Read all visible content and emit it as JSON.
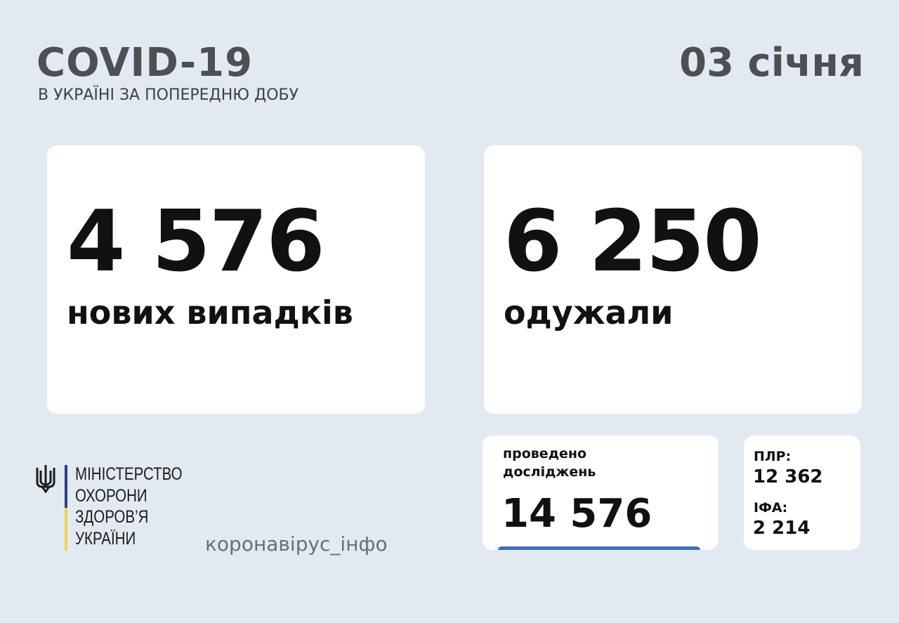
{
  "header": {
    "title": "COVID-19",
    "subtitle": "В УКРАЇНІ ЗА ПОПЕРЕДНЮ ДОБУ",
    "date": "03 січня"
  },
  "new_cases": {
    "value": "4 576",
    "label": "нових випадків"
  },
  "recovered": {
    "value": "6 250",
    "label": "одужали"
  },
  "tests": {
    "label_line1": "проведено",
    "label_line2": "досліджень",
    "value": "14 576"
  },
  "test_breakdown": {
    "pcr_label": "ПЛР:",
    "pcr_value": "12 362",
    "ifa_label": "ІФА:",
    "ifa_value": "2 214"
  },
  "ministry": {
    "lines": [
      "МІНІСТЕРСТВО",
      "ОХОРОНИ",
      "ЗДОРОВ’Я",
      "УКРАЇНИ"
    ],
    "emblem_icon": "trident-icon"
  },
  "hashtag": "коронавірус_інфо",
  "colors": {
    "background": "#e3e9f0",
    "accent_blue": "#3f6fb5",
    "flag_blue": "#2a3f8f",
    "flag_yellow": "#f2cf55"
  }
}
